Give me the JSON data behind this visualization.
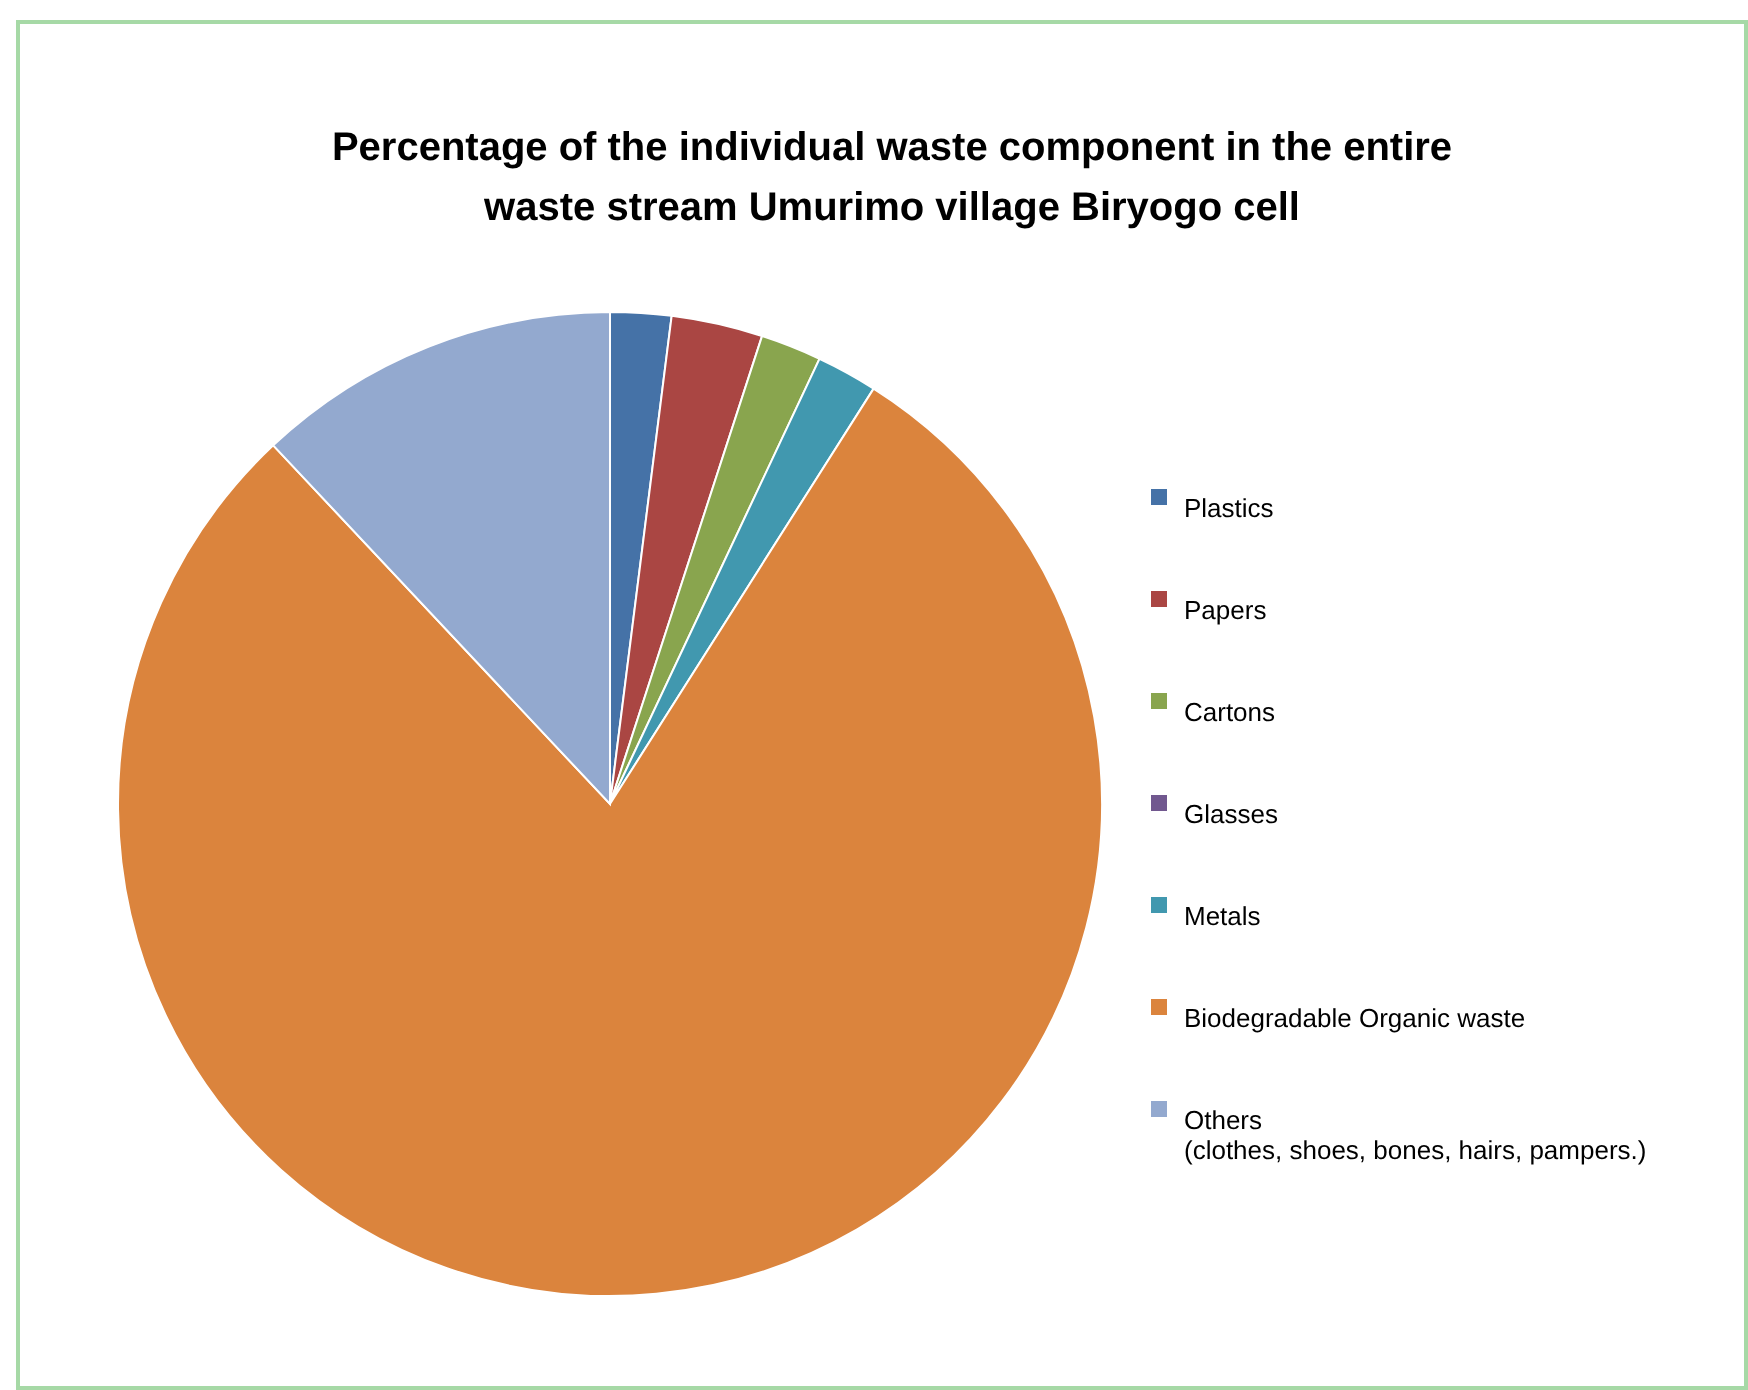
{
  "chart_data": {
    "type": "pie",
    "title": "Percentage of the individual waste component in the entire\nwaste stream Umurimo village Biryogo cell",
    "categories": [
      "Plastics",
      "Papers",
      "Cartons",
      "Glasses",
      "Metals",
      "Biodegradable Organic waste",
      "Others\n(clothes, shoes, bones, hairs, pampers.)"
    ],
    "values": [
      2,
      3,
      2,
      0,
      2,
      79,
      12
    ],
    "colors": [
      "#4572a7",
      "#aa4643",
      "#89a54e",
      "#71588f",
      "#4198af",
      "#db843d",
      "#93a9cf"
    ],
    "legend": "right"
  }
}
